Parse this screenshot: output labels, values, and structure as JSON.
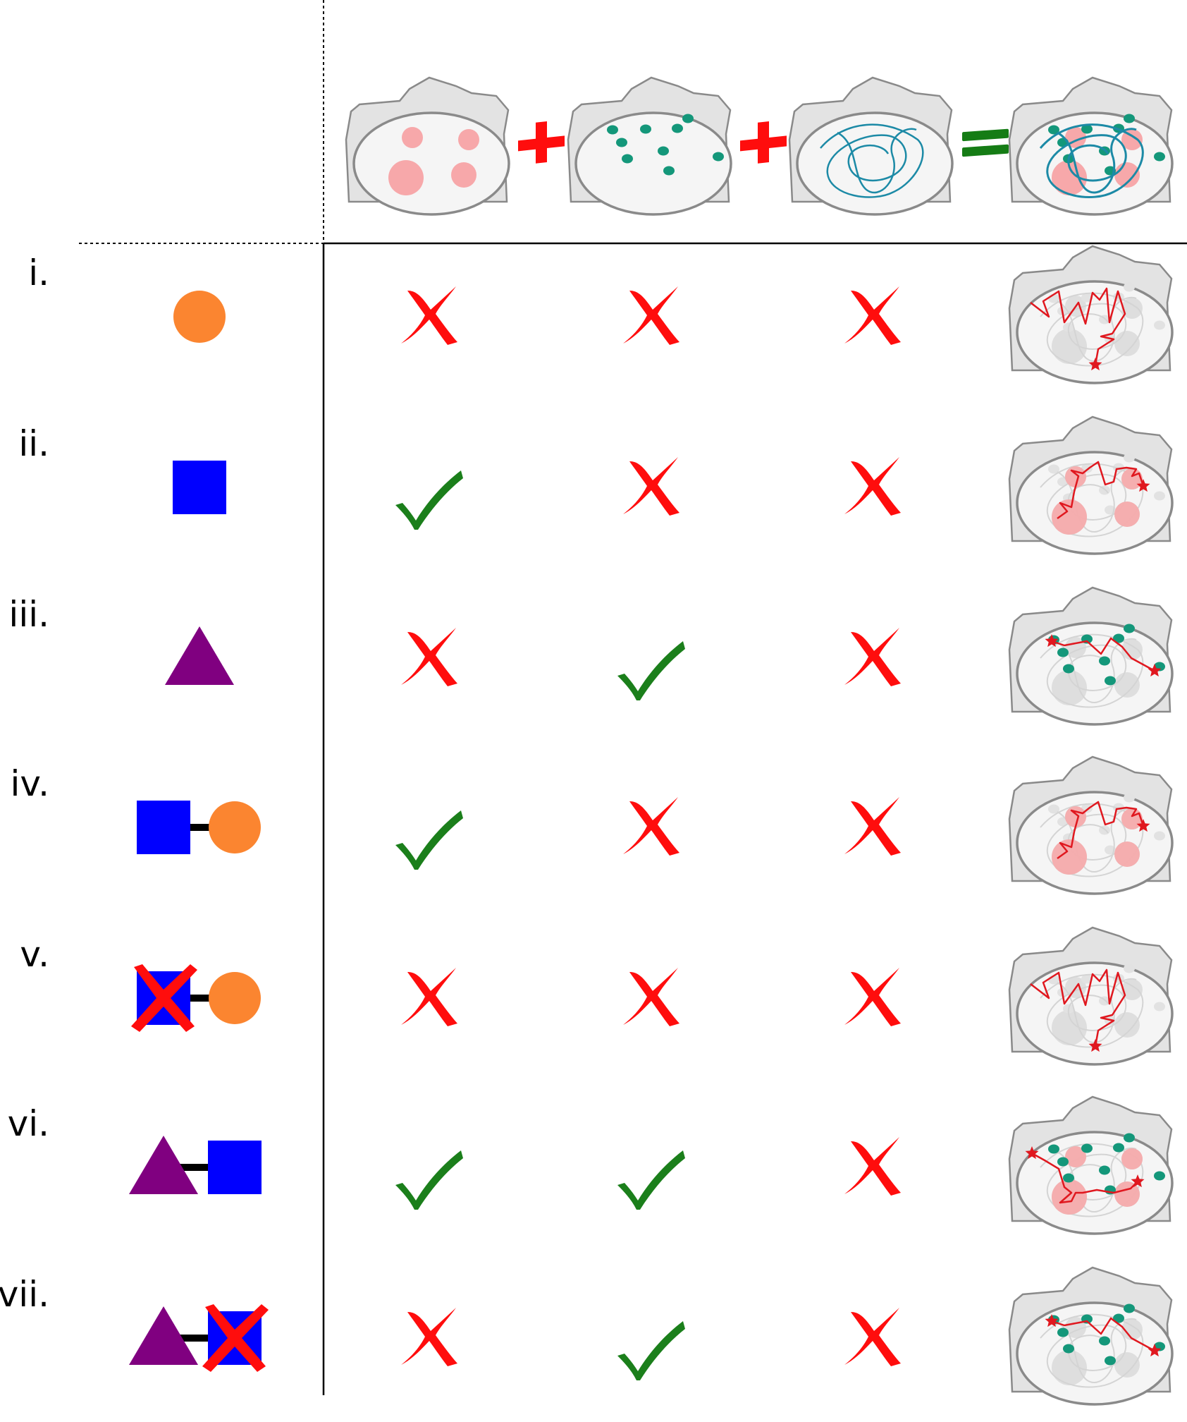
{
  "header": {
    "operators": [
      "+",
      "+",
      "="
    ],
    "cells": [
      {
        "name": "nucleoli-cell",
        "content": "pink-bodies"
      },
      {
        "name": "speckles-cell",
        "content": "teal-dots"
      },
      {
        "name": "chromatin-cell",
        "content": "teal-fibers"
      },
      {
        "name": "combined-cell",
        "content": "all-combined"
      }
    ]
  },
  "rows": [
    {
      "label": "i.",
      "construct": [
        "circle"
      ],
      "marks": [
        "x",
        "x",
        "x"
      ],
      "outcome": "free-walk"
    },
    {
      "label": "ii.",
      "construct": [
        "square"
      ],
      "marks": [
        "check",
        "x",
        "x"
      ],
      "outcome": "pink-walk"
    },
    {
      "label": "iii.",
      "construct": [
        "triangle"
      ],
      "marks": [
        "x",
        "check",
        "x"
      ],
      "outcome": "teal-walk"
    },
    {
      "label": "iv.",
      "construct": [
        "square",
        "circle"
      ],
      "marks": [
        "check",
        "x",
        "x"
      ],
      "outcome": "pink-walk"
    },
    {
      "label": "v.",
      "construct": [
        "square-crossed",
        "circle"
      ],
      "marks": [
        "x",
        "x",
        "x"
      ],
      "outcome": "free-walk"
    },
    {
      "label": "vi.",
      "construct": [
        "triangle",
        "square"
      ],
      "marks": [
        "check",
        "check",
        "x"
      ],
      "outcome": "both-walk"
    },
    {
      "label": "vii.",
      "construct": [
        "triangle",
        "square-crossed"
      ],
      "marks": [
        "x",
        "check",
        "x"
      ],
      "outcome": "teal-walk"
    }
  ],
  "colors": {
    "cell_fill": "#e3e3e3",
    "cell_stroke": "#8a8a8a",
    "nucleus_fill": "#f5f5f5",
    "nucleolus": "#f7a8aa",
    "speckle": "#14977a",
    "chromatin": "#1c8aa6",
    "walk": "#e0181f",
    "check": "#1b7f1b",
    "cross": "#ff0d0d",
    "circle": "#fb8530",
    "square": "#0000ff",
    "triangle": "#800080",
    "equals": "#157c15"
  },
  "icons": {
    "check": "check-icon",
    "cross": "cross-icon"
  }
}
